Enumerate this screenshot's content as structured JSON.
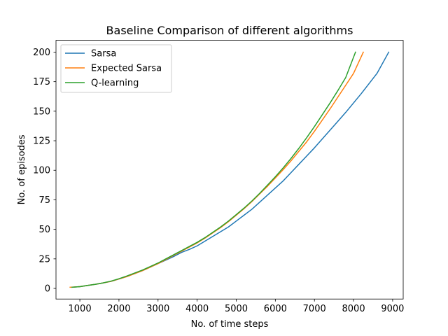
{
  "chart_data": {
    "type": "line",
    "title": "Baseline Comparison of different algorithms",
    "xlabel": "No. of time steps",
    "ylabel": "No. of episodes",
    "xlim": [
      390,
      9270
    ],
    "ylim": [
      -9,
      210
    ],
    "xticks": [
      1000,
      2000,
      3000,
      4000,
      5000,
      6000,
      7000,
      8000,
      9000
    ],
    "yticks": [
      0,
      25,
      50,
      75,
      100,
      125,
      150,
      175,
      200
    ],
    "grid": false,
    "legend_position": "top-left",
    "series": [
      {
        "name": "Sarsa",
        "color": "#1f77b4",
        "x": [
          800,
          1000,
          1200,
          1400,
          1600,
          1800,
          2000,
          2200,
          2400,
          2600,
          2800,
          3000,
          3200,
          3400,
          3600,
          3800,
          4000,
          4200,
          4400,
          4600,
          4800,
          5000,
          5200,
          5400,
          5600,
          5800,
          6000,
          6200,
          6400,
          6600,
          6800,
          7000,
          7200,
          7400,
          7600,
          7800,
          8000,
          8200,
          8400,
          8600,
          8900
        ],
        "y": [
          1,
          1.5,
          2.5,
          3.5,
          4.7,
          6,
          8,
          10,
          12.5,
          15,
          18,
          21,
          24,
          27,
          30.5,
          33,
          36,
          40,
          44,
          48,
          52,
          57,
          62,
          67,
          73,
          79,
          85,
          91,
          98,
          105,
          112,
          119,
          126.5,
          134,
          141.5,
          149,
          157,
          165,
          173.5,
          182,
          200
        ]
      },
      {
        "name": "Expected Sarsa",
        "color": "#ff7f0e",
        "x": [
          750,
          1000,
          1200,
          1400,
          1600,
          1800,
          2000,
          2200,
          2400,
          2600,
          2800,
          3000,
          3200,
          3400,
          3600,
          3800,
          4000,
          4200,
          4400,
          4600,
          4800,
          5000,
          5200,
          5400,
          5600,
          5800,
          6000,
          6200,
          6400,
          6600,
          6800,
          7000,
          7200,
          7400,
          7600,
          7800,
          8000,
          8250
        ],
        "y": [
          1,
          1.5,
          2.5,
          3.5,
          4.7,
          6,
          8,
          10,
          12.5,
          15,
          18,
          21,
          24.5,
          28,
          31.5,
          35,
          38.5,
          42.5,
          47,
          51.5,
          56.5,
          62,
          67.5,
          73.5,
          80,
          86.5,
          93.5,
          100.5,
          108,
          116,
          124,
          133,
          142.5,
          152,
          162,
          172,
          182,
          200
        ]
      },
      {
        "name": "Q-learning",
        "color": "#2ca02c",
        "x": [
          800,
          1000,
          1200,
          1400,
          1600,
          1800,
          2000,
          2200,
          2400,
          2600,
          2800,
          3000,
          3200,
          3400,
          3600,
          3800,
          4000,
          4200,
          4400,
          4600,
          4800,
          5000,
          5200,
          5400,
          5600,
          5800,
          6000,
          6200,
          6400,
          6600,
          6800,
          7000,
          7200,
          7400,
          7600,
          7800,
          8050
        ],
        "y": [
          1,
          1.5,
          2.5,
          3.5,
          4.7,
          6.2,
          8.2,
          10.5,
          13,
          15.5,
          18.5,
          21.5,
          25,
          28.5,
          32,
          35.5,
          39,
          43,
          47.5,
          52,
          57,
          62.5,
          68,
          74,
          80.5,
          87.5,
          94.5,
          102,
          110,
          118.5,
          127.5,
          137,
          147,
          157,
          167.5,
          178.5,
          200
        ]
      }
    ]
  }
}
